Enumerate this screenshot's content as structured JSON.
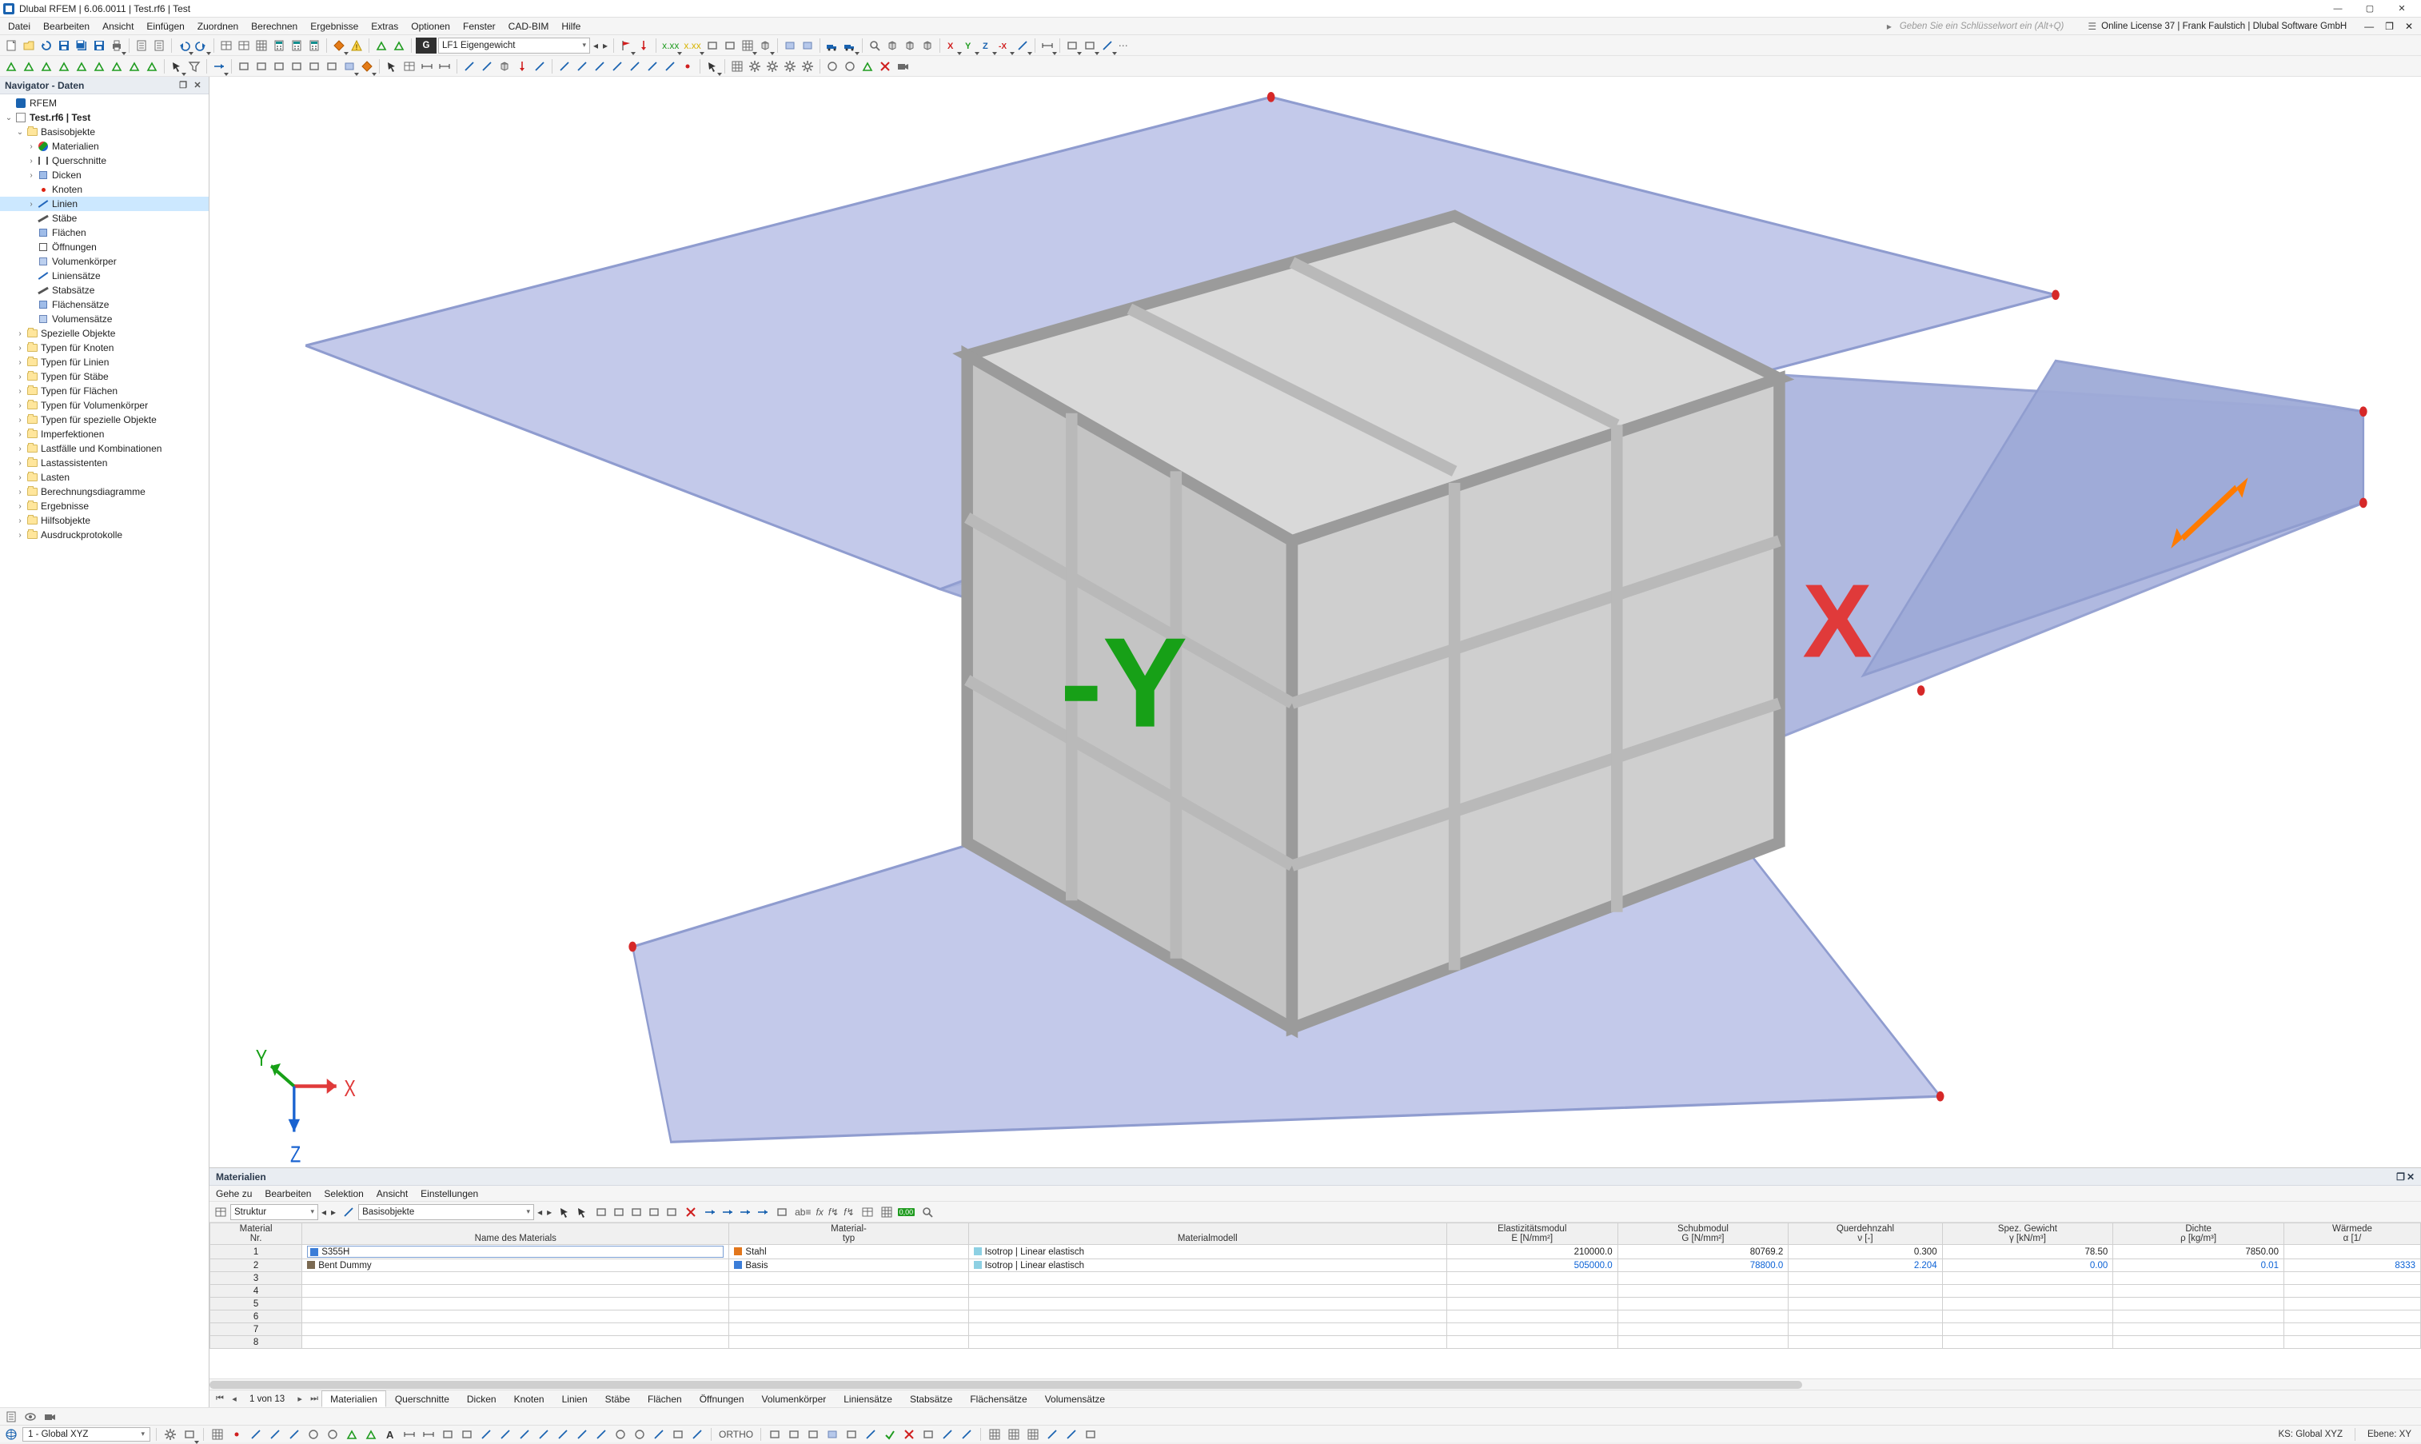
{
  "titlebar": {
    "title": "Dlubal RFEM | 6.06.0011 | Test.rf6 | Test"
  },
  "menubar": {
    "items": [
      "Datei",
      "Bearbeiten",
      "Ansicht",
      "Einfügen",
      "Zuordnen",
      "Berechnen",
      "Ergebnisse",
      "Extras",
      "Optionen",
      "Fenster",
      "CAD-BIM",
      "Hilfe"
    ],
    "keyword_placeholder": "Geben Sie ein Schlüsselwort ein (Alt+Q)",
    "license": "Online License 37 | Frank Faulstich | Dlubal Software GmbH"
  },
  "toolbar1": {
    "load_combo_badge": "G",
    "load_combo_label": "LF1   Eigengewicht"
  },
  "navigator": {
    "title": "Navigator - Daten",
    "root": "RFEM",
    "file": "Test.rf6 | Test",
    "basis_label": "Basisobjekte",
    "basis_children": [
      {
        "label": "Materialien",
        "icon": "mat"
      },
      {
        "label": "Querschnitte",
        "icon": "qs"
      },
      {
        "label": "Dicken",
        "icon": "dk"
      },
      {
        "label": "Knoten",
        "icon": "knot"
      },
      {
        "label": "Linien",
        "icon": "line",
        "selected": true
      },
      {
        "label": "Stäbe",
        "icon": "stab"
      },
      {
        "label": "Flächen",
        "icon": "flae"
      },
      {
        "label": "Öffnungen",
        "icon": "oeff"
      },
      {
        "label": "Volumenkörper",
        "icon": "vol"
      },
      {
        "label": "Liniensätze",
        "icon": "ls"
      },
      {
        "label": "Stabsätze",
        "icon": "ss"
      },
      {
        "label": "Flächensätze",
        "icon": "fs"
      },
      {
        "label": "Volumensätze",
        "icon": "vs"
      }
    ],
    "other": [
      "Spezielle Objekte",
      "Typen für Knoten",
      "Typen für Linien",
      "Typen für Stäbe",
      "Typen für Flächen",
      "Typen für Volumenkörper",
      "Typen für spezielle Objekte",
      "Imperfektionen",
      "Lastfälle und Kombinationen",
      "Lastassistenten",
      "Lasten",
      "Berechnungsdiagramme",
      "Ergebnisse",
      "Hilfsobjekte",
      "Ausdruckprotokolle"
    ]
  },
  "viewport": {
    "origin_labels": {
      "x": "X",
      "y": "Y",
      "z": "Z"
    },
    "corner_labels": {
      "x": "X",
      "y": "Y",
      "z": "Z"
    },
    "surface_fill": "#c3c9ea",
    "surface_fill2": "#aab4de",
    "surface_stroke": "#8f9ccf",
    "cube_fill": "#cfcfcf",
    "cube_stroke": "#9b9b9b",
    "cube_grid": "#b9b9b9",
    "cube_y_label": "-Y"
  },
  "table_panel": {
    "title": "Materialien",
    "menu": [
      "Gehe zu",
      "Bearbeiten",
      "Selektion",
      "Ansicht",
      "Einstellungen"
    ],
    "toolbar_combo1": "Struktur",
    "toolbar_combo2": "Basisobjekte",
    "columns": [
      {
        "h1": "Material",
        "h2": "Nr."
      },
      {
        "h1": "",
        "h2": "Name des Materials"
      },
      {
        "h1": "Material-",
        "h2": "typ"
      },
      {
        "h1": "",
        "h2": "Materialmodell"
      },
      {
        "h1": "Elastizitätsmodul",
        "h2": "E [N/mm²]"
      },
      {
        "h1": "Schubmodul",
        "h2": "G [N/mm²]"
      },
      {
        "h1": "Querdehnzahl",
        "h2": "ν [-]"
      },
      {
        "h1": "Spez. Gewicht",
        "h2": "γ [kN/m³]"
      },
      {
        "h1": "Dichte",
        "h2": "ρ [kg/m³]"
      },
      {
        "h1": "Wärmede",
        "h2": "α [1/"
      }
    ],
    "rows": [
      {
        "nr": "1",
        "name": "S355H",
        "name_swatch": "#3b7dd8",
        "typ": "Stahl",
        "typ_swatch": "#e2761b",
        "model": "Isotrop | Linear elastisch",
        "E": "210000.0",
        "G": "80769.2",
        "v": "0.300",
        "gamma": "78.50",
        "rho": "7850.00",
        "alpha": "",
        "link": false,
        "editing": true
      },
      {
        "nr": "2",
        "name": "Bent Dummy",
        "name_swatch": "#7b6a52",
        "typ": "Basis",
        "typ_swatch": "#3b7dd8",
        "model": "Isotrop | Linear elastisch",
        "E": "505000.0",
        "G": "78800.0",
        "v": "2.204",
        "gamma": "0.00",
        "rho": "0.01",
        "alpha": "8333",
        "link": true
      }
    ],
    "empty_rows": [
      "3",
      "4",
      "5",
      "6",
      "7",
      "8"
    ],
    "page_info": "1 von 13",
    "tabs": [
      "Materialien",
      "Querschnitte",
      "Dicken",
      "Knoten",
      "Linien",
      "Stäbe",
      "Flächen",
      "Öffnungen",
      "Volumenkörper",
      "Liniensätze",
      "Stabsätze",
      "Flächensätze",
      "Volumensätze"
    ],
    "active_tab": 0
  },
  "statusbar2_combo": "1 - Global XYZ",
  "statusbar2_right": {
    "ks": "KS: Global XYZ",
    "ebene": "Ebene: XY"
  }
}
